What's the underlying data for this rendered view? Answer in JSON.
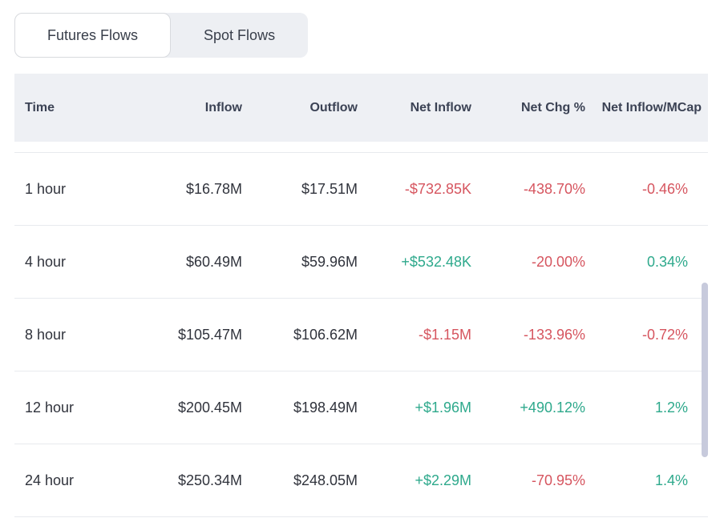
{
  "tabs": [
    {
      "label": "Futures Flows",
      "active": true
    },
    {
      "label": "Spot Flows",
      "active": false
    }
  ],
  "table": {
    "columns": [
      {
        "key": "time",
        "label": "Time"
      },
      {
        "key": "inflow",
        "label": "Inflow"
      },
      {
        "key": "outflow",
        "label": "Outflow"
      },
      {
        "key": "net-inflow",
        "label": "Net Inflow"
      },
      {
        "key": "net-chg-pct",
        "label": "Net Chg %"
      },
      {
        "key": "net-inflow-mcap",
        "label": "Net Inflow/MCap"
      }
    ],
    "rows": [
      {
        "cells": [
          {
            "text": "1 hour",
            "tone": "default"
          },
          {
            "text": "$16.78M",
            "tone": "default"
          },
          {
            "text": "$17.51M",
            "tone": "default"
          },
          {
            "text": "-$732.85K",
            "tone": "neg"
          },
          {
            "text": "-438.70%",
            "tone": "neg"
          },
          {
            "text": "-0.46%",
            "tone": "neg"
          }
        ]
      },
      {
        "cells": [
          {
            "text": "4 hour",
            "tone": "default"
          },
          {
            "text": "$60.49M",
            "tone": "default"
          },
          {
            "text": "$59.96M",
            "tone": "default"
          },
          {
            "text": "+$532.48K",
            "tone": "pos"
          },
          {
            "text": "-20.00%",
            "tone": "neg"
          },
          {
            "text": "0.34%",
            "tone": "pos"
          }
        ]
      },
      {
        "cells": [
          {
            "text": "8 hour",
            "tone": "default"
          },
          {
            "text": "$105.47M",
            "tone": "default"
          },
          {
            "text": "$106.62M",
            "tone": "default"
          },
          {
            "text": "-$1.15M",
            "tone": "neg"
          },
          {
            "text": "-133.96%",
            "tone": "neg"
          },
          {
            "text": "-0.72%",
            "tone": "neg"
          }
        ]
      },
      {
        "cells": [
          {
            "text": "12 hour",
            "tone": "default"
          },
          {
            "text": "$200.45M",
            "tone": "default"
          },
          {
            "text": "$198.49M",
            "tone": "default"
          },
          {
            "text": "+$1.96M",
            "tone": "pos"
          },
          {
            "text": "+490.12%",
            "tone": "pos"
          },
          {
            "text": "1.2%",
            "tone": "pos"
          }
        ]
      },
      {
        "cells": [
          {
            "text": "24 hour",
            "tone": "default"
          },
          {
            "text": "$250.34M",
            "tone": "default"
          },
          {
            "text": "$248.05M",
            "tone": "default"
          },
          {
            "text": "+$2.29M",
            "tone": "pos"
          },
          {
            "text": "-70.95%",
            "tone": "neg"
          },
          {
            "text": "1.4%",
            "tone": "pos"
          }
        ]
      }
    ]
  },
  "colors": {
    "negative": "#d6555f",
    "positive": "#2ea98c",
    "header_bg": "#eef0f4",
    "tabs_bg": "#edeff3",
    "scrollbar_thumb": "#c7cadc"
  }
}
